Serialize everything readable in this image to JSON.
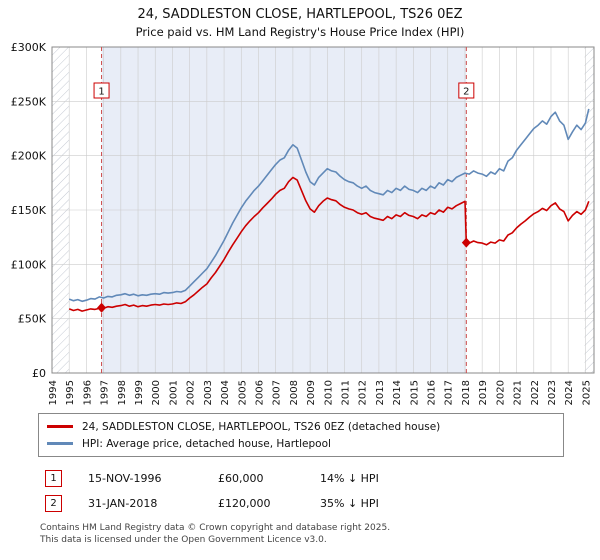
{
  "chart_data": {
    "type": "line",
    "title": "24, SADDLESTON CLOSE, HARTLEPOOL, TS26 0EZ",
    "subtitle": "Price paid vs. HM Land Registry's House Price Index (HPI)",
    "x_range": [
      1994,
      2025.5
    ],
    "y_range": [
      0,
      300000
    ],
    "x_ticks": [
      1994,
      1995,
      1996,
      1997,
      1998,
      1999,
      2000,
      2001,
      2002,
      2003,
      2004,
      2005,
      2006,
      2007,
      2008,
      2009,
      2010,
      2011,
      2012,
      2013,
      2014,
      2015,
      2016,
      2017,
      2018,
      2019,
      2020,
      2021,
      2022,
      2023,
      2024,
      2025
    ],
    "y_ticks": [
      0,
      50000,
      100000,
      150000,
      200000,
      250000,
      300000
    ],
    "y_tick_labels": [
      "£0",
      "£50K",
      "£100K",
      "£150K",
      "£200K",
      "£250K",
      "£300K"
    ],
    "grid": true,
    "legend_position": "bottom",
    "colors": {
      "property_line": "#cc0000",
      "hpi_line": "#6189b8",
      "shade": "#e8edf7",
      "grid": "#cccccc",
      "border": "#888888",
      "dashed": "#cc4b4b",
      "hatch": "#c4c9d2",
      "marker": "#cc0000",
      "badge_border": "#cc0000"
    },
    "no_data_bands": {
      "left_end": 1995.0,
      "right_start": 2024.95
    },
    "shaded_region": {
      "from": 1996.88,
      "to": 2018.08
    },
    "sale_markers": [
      {
        "label": "1",
        "x": 1996.88,
        "y": 60000
      },
      {
        "label": "2",
        "x": 2018.08,
        "y": 120000
      }
    ],
    "series": [
      {
        "key": "property",
        "name": "24, SADDLESTON CLOSE, HARTLEPOOL, TS26 0EZ (detached house)",
        "color": "#cc0000",
        "points": [
          [
            1995.0,
            59000
          ],
          [
            1995.25,
            57500
          ],
          [
            1995.5,
            58500
          ],
          [
            1995.75,
            57000
          ],
          [
            1996.0,
            58000
          ],
          [
            1996.25,
            59000
          ],
          [
            1996.5,
            58500
          ],
          [
            1996.88,
            60000
          ],
          [
            1997.0,
            59500
          ],
          [
            1997.25,
            61000
          ],
          [
            1997.5,
            60500
          ],
          [
            1997.75,
            61500
          ],
          [
            1998.0,
            62000
          ],
          [
            1998.25,
            63000
          ],
          [
            1998.5,
            61500
          ],
          [
            1998.75,
            62500
          ],
          [
            1999.0,
            61000
          ],
          [
            1999.25,
            62000
          ],
          [
            1999.5,
            61500
          ],
          [
            1999.75,
            62500
          ],
          [
            2000.0,
            63000
          ],
          [
            2000.25,
            62500
          ],
          [
            2000.5,
            63500
          ],
          [
            2000.75,
            63000
          ],
          [
            2001.0,
            63500
          ],
          [
            2001.25,
            64500
          ],
          [
            2001.5,
            64000
          ],
          [
            2001.75,
            65500
          ],
          [
            2002.0,
            69000
          ],
          [
            2002.25,
            72000
          ],
          [
            2002.5,
            75500
          ],
          [
            2002.75,
            79000
          ],
          [
            2003.0,
            82000
          ],
          [
            2003.25,
            87500
          ],
          [
            2003.5,
            92500
          ],
          [
            2003.75,
            98500
          ],
          [
            2004.0,
            104500
          ],
          [
            2004.25,
            111500
          ],
          [
            2004.5,
            118000
          ],
          [
            2004.75,
            124000
          ],
          [
            2005.0,
            130000
          ],
          [
            2005.25,
            135500
          ],
          [
            2005.5,
            140000
          ],
          [
            2005.75,
            144000
          ],
          [
            2006.0,
            147500
          ],
          [
            2006.25,
            152000
          ],
          [
            2006.5,
            156000
          ],
          [
            2006.75,
            160000
          ],
          [
            2007.0,
            164500
          ],
          [
            2007.25,
            168000
          ],
          [
            2007.5,
            170000
          ],
          [
            2007.75,
            176000
          ],
          [
            2008.0,
            180000
          ],
          [
            2008.25,
            177500
          ],
          [
            2008.5,
            168000
          ],
          [
            2008.75,
            158500
          ],
          [
            2009.0,
            151000
          ],
          [
            2009.25,
            148000
          ],
          [
            2009.5,
            154000
          ],
          [
            2009.75,
            158000
          ],
          [
            2010.0,
            161000
          ],
          [
            2010.25,
            159500
          ],
          [
            2010.5,
            158500
          ],
          [
            2010.75,
            155000
          ],
          [
            2011.0,
            152500
          ],
          [
            2011.25,
            151000
          ],
          [
            2011.5,
            150000
          ],
          [
            2011.75,
            147500
          ],
          [
            2012.0,
            146000
          ],
          [
            2012.25,
            147500
          ],
          [
            2012.5,
            144000
          ],
          [
            2012.75,
            142500
          ],
          [
            2013.0,
            141500
          ],
          [
            2013.25,
            140500
          ],
          [
            2013.5,
            144000
          ],
          [
            2013.75,
            142000
          ],
          [
            2014.0,
            145500
          ],
          [
            2014.25,
            144000
          ],
          [
            2014.5,
            147500
          ],
          [
            2014.75,
            145000
          ],
          [
            2015.0,
            144000
          ],
          [
            2015.25,
            142000
          ],
          [
            2015.5,
            145500
          ],
          [
            2015.75,
            144000
          ],
          [
            2016.0,
            147500
          ],
          [
            2016.25,
            146000
          ],
          [
            2016.5,
            150000
          ],
          [
            2016.75,
            148000
          ],
          [
            2017.0,
            152500
          ],
          [
            2017.25,
            151000
          ],
          [
            2017.5,
            154000
          ],
          [
            2017.75,
            156000
          ],
          [
            2018.0,
            158000
          ],
          [
            2018.08,
            120000
          ],
          [
            2018.25,
            119500
          ],
          [
            2018.5,
            121500
          ],
          [
            2018.75,
            120000
          ],
          [
            2019.0,
            119500
          ],
          [
            2019.25,
            118000
          ],
          [
            2019.5,
            120500
          ],
          [
            2019.75,
            119500
          ],
          [
            2020.0,
            122500
          ],
          [
            2020.25,
            121500
          ],
          [
            2020.5,
            127000
          ],
          [
            2020.75,
            129000
          ],
          [
            2021.0,
            133500
          ],
          [
            2021.25,
            137000
          ],
          [
            2021.5,
            140000
          ],
          [
            2021.75,
            143500
          ],
          [
            2022.0,
            146500
          ],
          [
            2022.25,
            148500
          ],
          [
            2022.5,
            151500
          ],
          [
            2022.75,
            149500
          ],
          [
            2023.0,
            154000
          ],
          [
            2023.25,
            156500
          ],
          [
            2023.5,
            151000
          ],
          [
            2023.75,
            148500
          ],
          [
            2024.0,
            140000
          ],
          [
            2024.25,
            145000
          ],
          [
            2024.5,
            148500
          ],
          [
            2024.75,
            146000
          ],
          [
            2025.0,
            150000
          ],
          [
            2025.2,
            158000
          ]
        ]
      },
      {
        "key": "hpi",
        "name": "HPI: Average price, detached house, Hartlepool",
        "color": "#6189b8",
        "points": [
          [
            1995.0,
            68000
          ],
          [
            1995.25,
            66500
          ],
          [
            1995.5,
            67500
          ],
          [
            1995.75,
            66000
          ],
          [
            1996.0,
            67000
          ],
          [
            1996.25,
            68500
          ],
          [
            1996.5,
            68000
          ],
          [
            1996.75,
            70000
          ],
          [
            1997.0,
            69000
          ],
          [
            1997.25,
            70500
          ],
          [
            1997.5,
            70000
          ],
          [
            1997.75,
            71500
          ],
          [
            1998.0,
            72000
          ],
          [
            1998.25,
            73000
          ],
          [
            1998.5,
            71500
          ],
          [
            1998.75,
            72500
          ],
          [
            1999.0,
            71000
          ],
          [
            1999.25,
            72000
          ],
          [
            1999.5,
            71500
          ],
          [
            1999.75,
            72500
          ],
          [
            2000.0,
            73000
          ],
          [
            2000.25,
            72500
          ],
          [
            2000.5,
            74000
          ],
          [
            2000.75,
            73500
          ],
          [
            2001.0,
            74000
          ],
          [
            2001.25,
            75000
          ],
          [
            2001.5,
            74500
          ],
          [
            2001.75,
            76000
          ],
          [
            2002.0,
            80000
          ],
          [
            2002.25,
            84000
          ],
          [
            2002.5,
            88000
          ],
          [
            2002.75,
            92000
          ],
          [
            2003.0,
            96000
          ],
          [
            2003.25,
            102000
          ],
          [
            2003.5,
            108000
          ],
          [
            2003.75,
            115000
          ],
          [
            2004.0,
            122000
          ],
          [
            2004.25,
            130000
          ],
          [
            2004.5,
            138000
          ],
          [
            2004.75,
            145000
          ],
          [
            2005.0,
            152000
          ],
          [
            2005.25,
            158000
          ],
          [
            2005.5,
            163000
          ],
          [
            2005.75,
            168000
          ],
          [
            2006.0,
            172000
          ],
          [
            2006.25,
            177000
          ],
          [
            2006.5,
            182000
          ],
          [
            2006.75,
            187000
          ],
          [
            2007.0,
            192000
          ],
          [
            2007.25,
            196000
          ],
          [
            2007.5,
            198000
          ],
          [
            2007.75,
            205000
          ],
          [
            2008.0,
            210000
          ],
          [
            2008.25,
            207000
          ],
          [
            2008.5,
            196000
          ],
          [
            2008.75,
            185000
          ],
          [
            2009.0,
            176000
          ],
          [
            2009.25,
            173000
          ],
          [
            2009.5,
            180000
          ],
          [
            2009.75,
            184000
          ],
          [
            2010.0,
            188000
          ],
          [
            2010.25,
            186000
          ],
          [
            2010.5,
            185000
          ],
          [
            2010.75,
            181000
          ],
          [
            2011.0,
            178000
          ],
          [
            2011.25,
            176000
          ],
          [
            2011.5,
            175000
          ],
          [
            2011.75,
            172000
          ],
          [
            2012.0,
            170000
          ],
          [
            2012.25,
            172000
          ],
          [
            2012.5,
            168000
          ],
          [
            2012.75,
            166000
          ],
          [
            2013.0,
            165000
          ],
          [
            2013.25,
            164000
          ],
          [
            2013.5,
            168000
          ],
          [
            2013.75,
            166000
          ],
          [
            2014.0,
            170000
          ],
          [
            2014.25,
            168000
          ],
          [
            2014.5,
            172000
          ],
          [
            2014.75,
            169000
          ],
          [
            2015.0,
            168000
          ],
          [
            2015.25,
            166000
          ],
          [
            2015.5,
            170000
          ],
          [
            2015.75,
            168000
          ],
          [
            2016.0,
            172000
          ],
          [
            2016.25,
            170000
          ],
          [
            2016.5,
            175000
          ],
          [
            2016.75,
            173000
          ],
          [
            2017.0,
            178000
          ],
          [
            2017.25,
            176000
          ],
          [
            2017.5,
            180000
          ],
          [
            2017.75,
            182000
          ],
          [
            2018.0,
            184000
          ],
          [
            2018.25,
            183000
          ],
          [
            2018.5,
            186000
          ],
          [
            2018.75,
            184000
          ],
          [
            2019.0,
            183000
          ],
          [
            2019.25,
            181000
          ],
          [
            2019.5,
            185000
          ],
          [
            2019.75,
            183000
          ],
          [
            2020.0,
            188000
          ],
          [
            2020.25,
            186000
          ],
          [
            2020.5,
            195000
          ],
          [
            2020.75,
            198000
          ],
          [
            2021.0,
            205000
          ],
          [
            2021.25,
            210000
          ],
          [
            2021.5,
            215000
          ],
          [
            2021.75,
            220000
          ],
          [
            2022.0,
            225000
          ],
          [
            2022.25,
            228000
          ],
          [
            2022.5,
            232000
          ],
          [
            2022.75,
            229000
          ],
          [
            2023.0,
            236000
          ],
          [
            2023.25,
            240000
          ],
          [
            2023.5,
            232000
          ],
          [
            2023.75,
            228000
          ],
          [
            2024.0,
            215000
          ],
          [
            2024.25,
            222000
          ],
          [
            2024.5,
            228000
          ],
          [
            2024.75,
            224000
          ],
          [
            2025.0,
            230000
          ],
          [
            2025.2,
            243000
          ]
        ]
      }
    ]
  },
  "transactions": [
    {
      "num": "1",
      "date": "15-NOV-1996",
      "price": "£60,000",
      "delta": "14% ↓ HPI"
    },
    {
      "num": "2",
      "date": "31-JAN-2018",
      "price": "£120,000",
      "delta": "35% ↓ HPI"
    }
  ],
  "footer": {
    "line1": "Contains HM Land Registry data © Crown copyright and database right 2025.",
    "line2": "This data is licensed under the Open Government Licence v3.0."
  }
}
